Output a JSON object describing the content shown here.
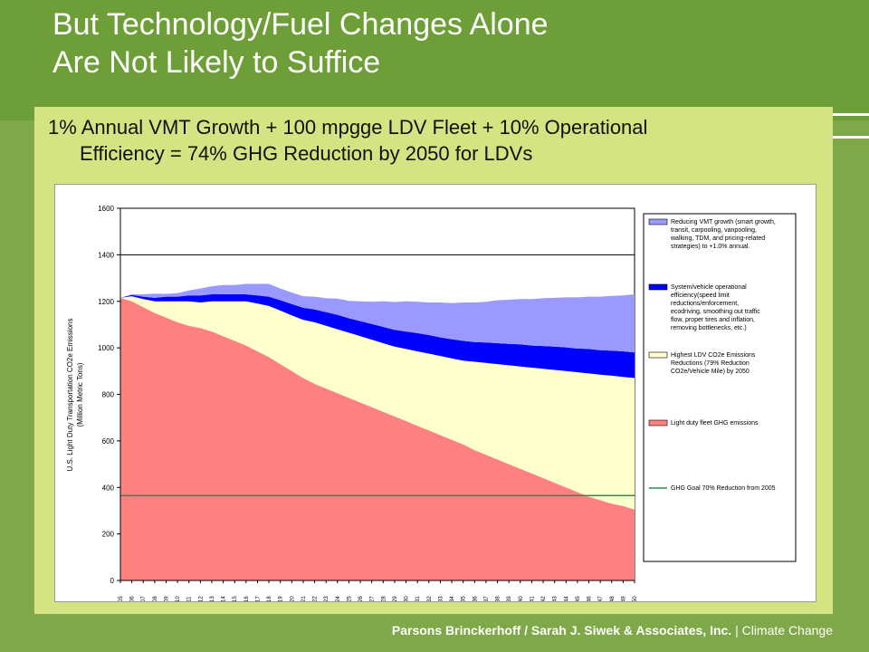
{
  "slide": {
    "title_line1": "But Technology/Fuel Changes Alone",
    "title_line2": "Are Not Likely to Suffice",
    "subtitle_line1": "1% Annual VMT Growth + 100 mpgge LDV Fleet + 10% Operational",
    "subtitle_line2": "Efficiency = 74% GHG Reduction by 2050 for LDVs",
    "footer_bold": "Parsons Brinckerhoff / Sarah  J. Siwek & Associates, Inc.",
    "footer_rest": " | Climate Change"
  },
  "colors": {
    "header_bg": "#6e9e37",
    "slide_bg": "#7fa848",
    "panel_bg": "#d4e483"
  },
  "chart_data": {
    "type": "area",
    "stacked": true,
    "ylabel_line1": "U.S. Light Duty Transportation CO2e Emissions",
    "ylabel_line2": "(Million  Metric Tons)",
    "ylim": [
      0,
      1600
    ],
    "yticks": [
      0,
      200,
      400,
      600,
      800,
      1000,
      1200,
      1400,
      1600
    ],
    "grid": "horizontal at 1400",
    "legend_position": "right",
    "x": [
      2005,
      2006,
      2007,
      2008,
      2009,
      2010,
      2011,
      2012,
      2013,
      2014,
      2015,
      2016,
      2017,
      2018,
      2019,
      2020,
      2021,
      2022,
      2023,
      2024,
      2025,
      2026,
      2027,
      2028,
      2029,
      2030,
      2031,
      2032,
      2033,
      2034,
      2035,
      2036,
      2037,
      2038,
      2039,
      2040,
      2041,
      2042,
      2043,
      2044,
      2045,
      2046,
      2047,
      2048,
      2049,
      2050
    ],
    "series": [
      {
        "name": "Light duty fleet GHG emissions",
        "color": "#ff8080",
        "values": [
          1215,
          1200,
          1175,
          1150,
          1130,
          1110,
          1095,
          1085,
          1070,
          1050,
          1030,
          1010,
          985,
          960,
          930,
          900,
          870,
          845,
          825,
          805,
          785,
          765,
          745,
          725,
          705,
          685,
          665,
          645,
          625,
          605,
          585,
          560,
          540,
          520,
          500,
          480,
          460,
          440,
          420,
          400,
          380,
          360,
          345,
          330,
          320,
          305
        ]
      },
      {
        "name": "Highest LDV CO2e Emissions Reductions (79% Reduction CO2e/Vehicle Mile) by 2050",
        "color": "#ffffcc",
        "values": [
          0,
          22,
          35,
          50,
          70,
          90,
          105,
          110,
          130,
          150,
          170,
          190,
          205,
          220,
          230,
          240,
          250,
          265,
          270,
          275,
          280,
          285,
          290,
          295,
          300,
          310,
          320,
          330,
          340,
          350,
          360,
          380,
          395,
          410,
          425,
          440,
          455,
          470,
          485,
          500,
          515,
          530,
          540,
          550,
          555,
          565
        ]
      },
      {
        "name": "System/vehicle operational efficiency(speed limit reductions/enforcement, ecodriving, smoothing out traffic flow, proper tires and inflation, removing bottlenecks, etc.)",
        "color": "#0000ff",
        "values": [
          0,
          5,
          10,
          15,
          20,
          20,
          25,
          30,
          30,
          30,
          30,
          30,
          35,
          40,
          45,
          48,
          52,
          55,
          58,
          62,
          62,
          65,
          68,
          70,
          72,
          75,
          78,
          80,
          80,
          82,
          85,
          85,
          88,
          90,
          92,
          95,
          95,
          98,
          100,
          102,
          102,
          105,
          105,
          108,
          110,
          110
        ]
      },
      {
        "name": "Reducing VMT growth (smart growth, transit, carpooling, vanpooling, walking, TDM, and pricing-related strategies) to +1.0% annual.",
        "color": "#9999ff",
        "values": [
          0,
          3,
          10,
          18,
          12,
          15,
          22,
          30,
          35,
          40,
          40,
          45,
          50,
          55,
          50,
          50,
          50,
          55,
          60,
          70,
          75,
          85,
          95,
          110,
          120,
          130,
          135,
          140,
          150,
          155,
          165,
          170,
          175,
          185,
          190,
          195,
          200,
          205,
          210,
          215,
          220,
          225,
          230,
          235,
          240,
          250
        ]
      }
    ],
    "goal": {
      "name": "GHG Goal 70% Reduction from 2005",
      "value": 365,
      "color": "#2e8b57"
    },
    "legend": [
      "Reducing VMT growth (smart growth, transit, carpooling, vanpooling, walking, TDM, and pricing-related strategies) to +1.0% annual.",
      "System/vehicle operational efficiency(speed limit reductions/enforcement, ecodriving, smoothing out traffic flow, proper tires and inflation, removing bottlenecks, etc.)",
      "Highest LDV CO2e Emissions Reductions (79% Reduction CO2e/Vehicle Mile) by 2050",
      "Light duty fleet GHG emissions",
      "GHG Goal 70% Reduction from 2005"
    ]
  }
}
